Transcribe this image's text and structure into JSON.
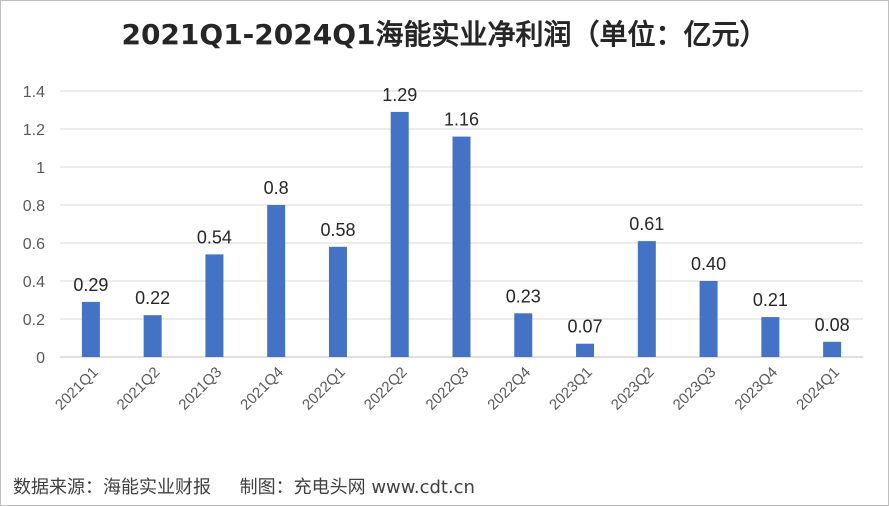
{
  "chart_data": {
    "type": "bar",
    "title": "2021Q1-2024Q1海能实业净利润（单位：亿元）",
    "categories": [
      "2021Q1",
      "2021Q2",
      "2021Q3",
      "2021Q4",
      "2022Q1",
      "2022Q2",
      "2022Q3",
      "2022Q4",
      "2023Q1",
      "2023Q2",
      "2023Q3",
      "2023Q4",
      "2024Q1"
    ],
    "values": [
      0.29,
      0.22,
      0.54,
      0.8,
      0.58,
      1.29,
      1.16,
      0.23,
      0.07,
      0.61,
      0.4,
      0.21,
      0.08
    ],
    "value_labels": [
      "0.29",
      "0.22",
      "0.54",
      "0.8",
      "0.58",
      "1.29",
      "1.16",
      "0.23",
      "0.07",
      "0.61",
      "0.40",
      "0.21",
      "0.08"
    ],
    "y_ticks": [
      "0",
      "0.2",
      "0.4",
      "0.6",
      "0.8",
      "1",
      "1.2",
      "1.4"
    ],
    "ylim": [
      0,
      1.4
    ],
    "grid": true,
    "bar_color": "#4472c4",
    "xlabel": "",
    "ylabel": ""
  },
  "footer": {
    "source": "数据来源：海能实业财报     制图：充电头网 www.cdt.cn"
  }
}
